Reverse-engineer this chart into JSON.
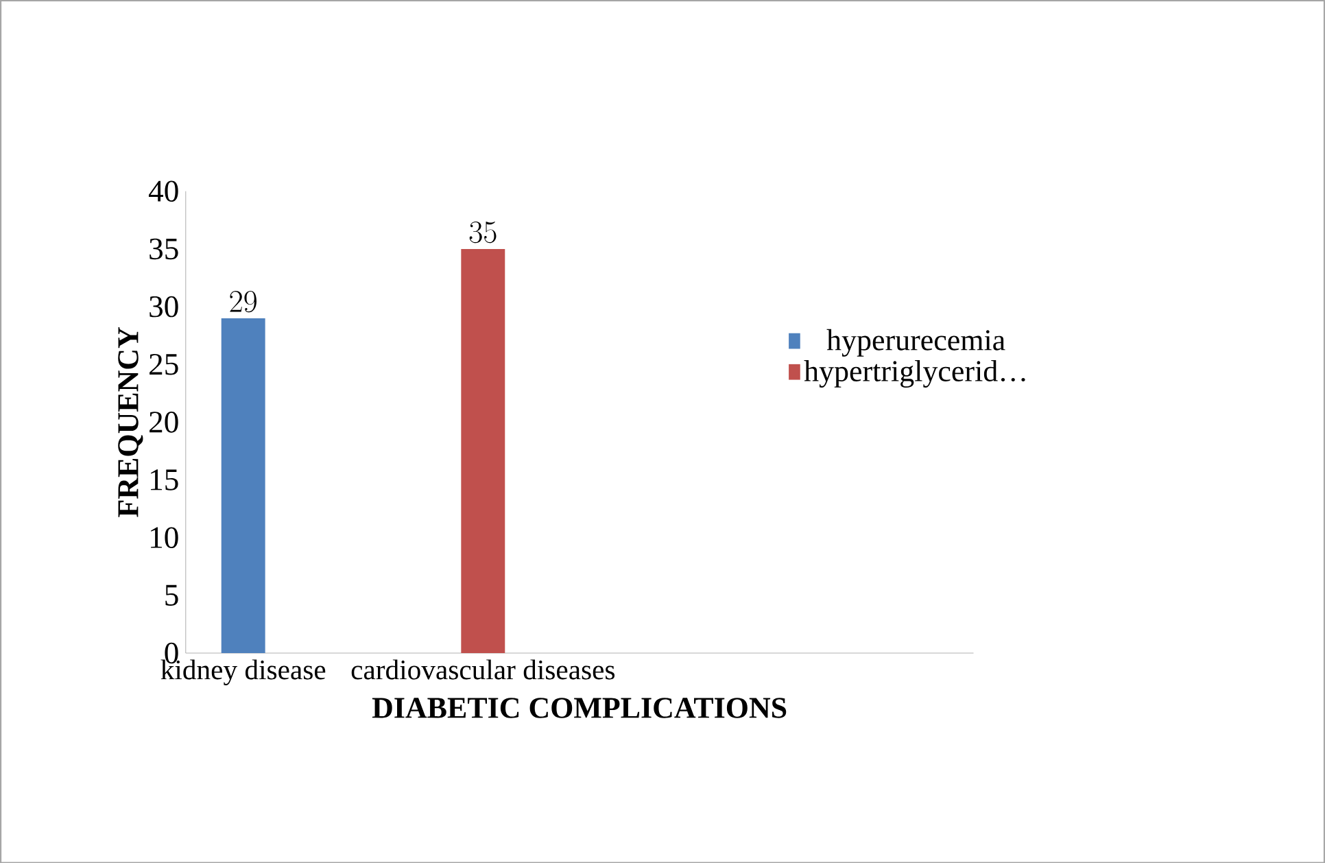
{
  "chart_data": {
    "type": "bar",
    "xlabel": "DIABETIC COMPLICATIONS",
    "ylabel": "FREQUENCY",
    "categories": [
      "kidney disease",
      "cardiovascular diseases"
    ],
    "series": [
      {
        "name": "hyperurecemia",
        "color": "#4f81bd",
        "values": [
          29,
          null
        ]
      },
      {
        "name": "hypertriglycerid…",
        "color": "#c0504d",
        "values": [
          null,
          35
        ]
      }
    ],
    "ylim": [
      0,
      40
    ],
    "yticks": [
      0,
      5,
      10,
      15,
      20,
      25,
      30,
      35,
      40
    ],
    "data_labels": true,
    "legend": "right",
    "grid": false
  }
}
